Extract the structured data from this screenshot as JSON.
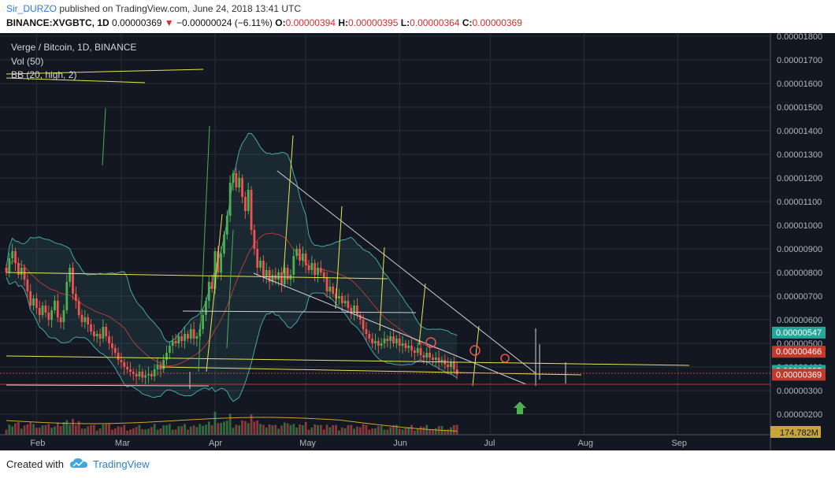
{
  "header": {
    "author": "Sir_DURZO",
    "published_text": " published on TradingView.com, June 24, 2018 13:41 UTC",
    "symbol": "BINANCE:XVGBTC, 1D",
    "last": "0.00000369",
    "arrow": "▼",
    "change": "−0.00000024 (−6.11%)",
    "o_label": "O:",
    "o_value": "0.00000394",
    "h_label": "H:",
    "h_value": "0.00000395",
    "l_label": "L:",
    "l_value": "0.00000364",
    "c_label": "C:",
    "c_value": "0.00000369"
  },
  "legend": {
    "title": "Verge / Bitcoin, 1D, BINANCE",
    "vol": "Vol (50)",
    "bb": "BB (20, high, 2)"
  },
  "footer": {
    "created": "Created with",
    "brand": "TradingView",
    "logo_icon": "tradingview-cloud-icon"
  },
  "colors": {
    "background": "#131722",
    "up": "#4caf50",
    "down": "#ef5350",
    "bb": "#46a6a6",
    "trend_yellow": "#e6e64a",
    "trend_white": "#d0d0d0",
    "price_label_teal": "#26a69a",
    "price_label_red": "#c0392b"
  },
  "chart_data": {
    "type": "candlestick",
    "y_axis": {
      "labels": [
        "0.00001800",
        "0.00001700",
        "0.00001600",
        "0.00001500",
        "0.00001400",
        "0.00001300",
        "0.00001200",
        "0.00001100",
        "0.00001000",
        "0.00000900",
        "0.00000800",
        "0.00000700",
        "0.00000600",
        "0.00000500",
        "0.00000400",
        "0.00000300",
        "0.00000200"
      ],
      "range": [
        1.7e-06,
        1.83e-05
      ]
    },
    "x_axis": {
      "labels": [
        "Feb",
        "Mar",
        "Apr",
        "May",
        "Jun",
        "Jul",
        "Aug",
        "Sep"
      ],
      "label_days": [
        21,
        49,
        80,
        110,
        141,
        171,
        202,
        233
      ]
    },
    "price_labels": [
      {
        "text": "0.00000547",
        "value": 5.47e-06,
        "color": "teal"
      },
      {
        "text": "0.00000466",
        "value": 4.66e-06,
        "color": "red"
      },
      {
        "text": "0.00000385",
        "value": 3.85e-06,
        "color": "teal"
      },
      {
        "text": "0.00000369",
        "value": 3.69e-06,
        "color": "red"
      }
    ],
    "volume_label": "174.782M",
    "close_approx": [
      [
        11,
        8.0
      ],
      [
        12,
        8.6
      ],
      [
        13,
        8.9
      ],
      [
        14,
        8.4
      ],
      [
        15,
        7.9
      ],
      [
        16,
        8.2
      ],
      [
        17,
        7.7
      ],
      [
        18,
        7.2
      ],
      [
        19,
        6.6
      ],
      [
        20,
        6.9
      ],
      [
        21,
        6.5
      ],
      [
        22,
        6.2
      ],
      [
        23,
        6.6
      ],
      [
        24,
        6.3
      ],
      [
        25,
        6.0
      ],
      [
        26,
        6.4
      ],
      [
        27,
        6.8
      ],
      [
        28,
        6.1
      ],
      [
        29,
        5.9
      ],
      [
        30,
        6.4
      ],
      [
        31,
        7.6
      ],
      [
        32,
        8.2
      ],
      [
        33,
        7.1
      ],
      [
        34,
        6.8
      ],
      [
        35,
        6.2
      ],
      [
        36,
        5.9
      ],
      [
        37,
        6.1
      ],
      [
        38,
        5.8
      ],
      [
        39,
        5.5
      ],
      [
        40,
        5.3
      ],
      [
        41,
        5.4
      ],
      [
        42,
        5.2
      ],
      [
        43,
        5.7
      ],
      [
        44,
        5.3
      ],
      [
        45,
        5.0
      ],
      [
        46,
        4.8
      ],
      [
        47,
        4.6
      ],
      [
        48,
        4.3
      ],
      [
        49,
        4.2
      ],
      [
        50,
        4.0
      ],
      [
        51,
        3.9
      ],
      [
        52,
        3.8
      ],
      [
        53,
        3.7
      ],
      [
        54,
        3.6
      ],
      [
        55,
        3.8
      ],
      [
        56,
        3.55
      ],
      [
        57,
        3.65
      ],
      [
        58,
        3.7
      ],
      [
        59,
        3.6
      ],
      [
        60,
        3.9
      ],
      [
        61,
        4.1
      ],
      [
        62,
        3.9
      ],
      [
        63,
        4.3
      ],
      [
        64,
        4.6
      ],
      [
        65,
        4.9
      ],
      [
        66,
        5.1
      ],
      [
        67,
        5.0
      ],
      [
        68,
        5.3
      ],
      [
        69,
        5.1
      ],
      [
        70,
        5.4
      ],
      [
        71,
        5.2
      ],
      [
        72,
        5.6
      ],
      [
        73,
        5.2
      ],
      [
        74,
        5.3
      ],
      [
        75,
        5.6
      ],
      [
        76,
        6.2
      ],
      [
        77,
        6.8
      ],
      [
        78,
        7.6
      ],
      [
        79,
        7.3
      ],
      [
        80,
        8.9
      ],
      [
        81,
        8.0
      ],
      [
        82,
        8.8
      ],
      [
        83,
        9.6
      ],
      [
        84,
        10.4
      ],
      [
        85,
        11.8
      ],
      [
        86,
        12.2
      ],
      [
        87,
        11.6
      ],
      [
        88,
        12.0
      ],
      [
        89,
        11.2
      ],
      [
        90,
        10.6
      ],
      [
        91,
        11.5
      ],
      [
        92,
        9.8
      ],
      [
        93,
        9.0
      ],
      [
        94,
        8.2
      ],
      [
        95,
        8.5
      ],
      [
        96,
        7.8
      ],
      [
        97,
        8.1
      ],
      [
        98,
        7.6
      ],
      [
        99,
        7.9
      ],
      [
        100,
        7.7
      ],
      [
        101,
        8.0
      ],
      [
        102,
        7.5
      ],
      [
        103,
        8.2
      ],
      [
        104,
        7.7
      ],
      [
        105,
        7.9
      ],
      [
        106,
        8.7
      ],
      [
        107,
        9.0
      ],
      [
        108,
        8.5
      ],
      [
        109,
        8.8
      ],
      [
        110,
        8.3
      ],
      [
        111,
        8.1
      ],
      [
        112,
        8.4
      ],
      [
        113,
        7.9
      ],
      [
        114,
        8.2
      ],
      [
        115,
        8.0
      ],
      [
        116,
        7.8
      ],
      [
        117,
        7.2
      ],
      [
        118,
        7.4
      ],
      [
        119,
        7.1
      ],
      [
        120,
        6.9
      ],
      [
        121,
        7.0
      ],
      [
        122,
        6.7
      ],
      [
        123,
        6.8
      ],
      [
        124,
        6.5
      ],
      [
        125,
        6.3
      ],
      [
        126,
        6.6
      ],
      [
        127,
        6.2
      ],
      [
        128,
        6.0
      ],
      [
        129,
        5.6
      ],
      [
        130,
        5.4
      ],
      [
        131,
        5.2
      ],
      [
        132,
        5.0
      ],
      [
        133,
        5.1
      ],
      [
        134,
        4.9
      ],
      [
        135,
        5.0
      ],
      [
        136,
        5.2
      ],
      [
        137,
        5.1
      ],
      [
        138,
        5.3
      ],
      [
        139,
        5.0
      ],
      [
        140,
        5.2
      ],
      [
        141,
        4.9
      ],
      [
        142,
        5.0
      ],
      [
        143,
        4.8
      ],
      [
        144,
        4.9
      ],
      [
        145,
        4.7
      ],
      [
        146,
        4.6
      ],
      [
        147,
        4.8
      ],
      [
        148,
        4.5
      ],
      [
        149,
        4.4
      ],
      [
        150,
        4.6
      ],
      [
        151,
        4.4
      ],
      [
        152,
        4.3
      ],
      [
        153,
        4.4
      ],
      [
        154,
        4.2
      ],
      [
        155,
        4.3
      ],
      [
        156,
        4.1
      ],
      [
        157,
        4.0
      ],
      [
        158,
        4.2
      ],
      [
        159,
        3.9
      ],
      [
        160,
        3.69
      ]
    ]
  }
}
